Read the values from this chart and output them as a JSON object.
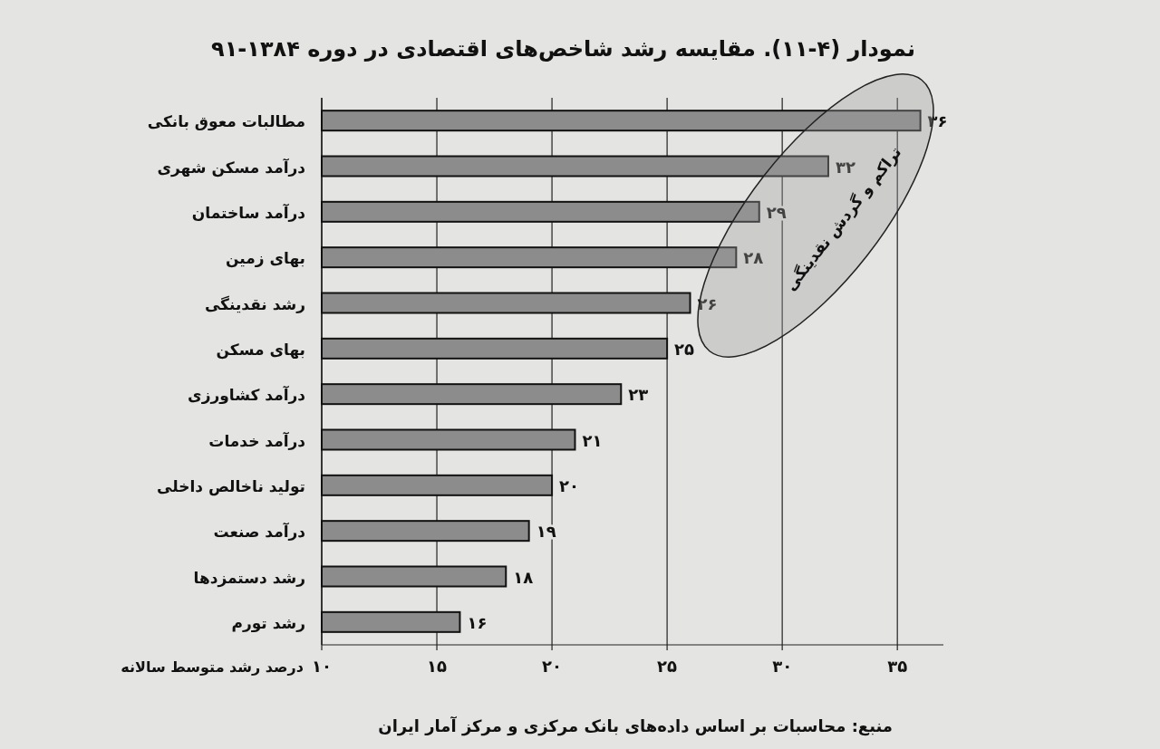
{
  "chart_data": {
    "type": "bar",
    "orientation": "horizontal",
    "title": "نمودار (۴-۱۱). مقایسه رشد شاخص‌های اقتصادی در دوره ۱۳۸۴-۹۱",
    "xlabel": "درصد رشد متوسط سالانه",
    "categories": [
      "مطالبات معوق بانکی",
      "درآمد مسکن شهری",
      "درآمد ساختمان",
      "بهای زمین",
      "رشد نقدینگی",
      "بهای مسکن",
      "درآمد کشاورزی",
      "درآمد خدمات",
      "تولید ناخالص داخلی",
      "درآمد صنعت",
      "رشد دستمزدها",
      "رشد تورم"
    ],
    "values": [
      36,
      32,
      29,
      28,
      26,
      25,
      23,
      21,
      20,
      19,
      18,
      16
    ],
    "value_labels": [
      "۳۶",
      "۳۲",
      "۲۹",
      "۲۸",
      "۲۶",
      "۲۵",
      "۲۳",
      "۲۱",
      "۲۰",
      "۱۹",
      "۱۸",
      "۱۶"
    ],
    "color": "#8c8c8c",
    "xlim": [
      10,
      37
    ],
    "xticks": [
      {
        "value": 10,
        "label": "۱۰"
      },
      {
        "value": 15,
        "label": "۱۵"
      },
      {
        "value": 20,
        "label": "۲۰"
      },
      {
        "value": 25,
        "label": "۲۵"
      },
      {
        "value": 30,
        "label": "۳۰"
      },
      {
        "value": 35,
        "label": "۳۵"
      }
    ],
    "grid": "x",
    "annotations": [
      "تراکم و گردش نقدینگی",
      "منبع: محاسبات بر اساس داده‌های بانک مرکزی و مرکز آمار ایران"
    ]
  }
}
